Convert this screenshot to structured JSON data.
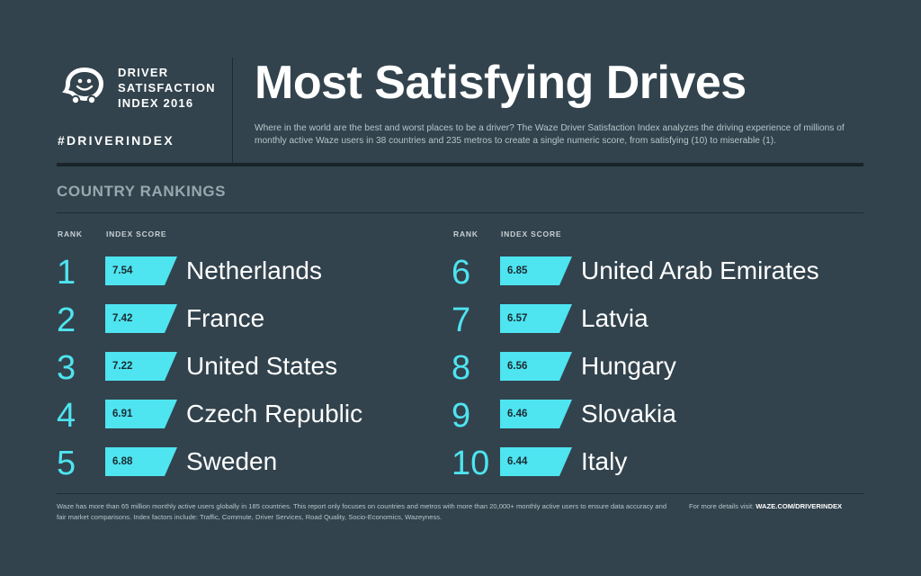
{
  "header": {
    "brand_lines": [
      "DRIVER",
      "SATISFACTION",
      "INDEX 2016"
    ],
    "hashtag": "#DRIVERINDEX",
    "title": "Most Satisfying Drives",
    "intro": "Where in the world are the best and worst places to be a driver? The Waze Driver Satisfaction Index analyzes the driving experience of millions of monthly active Waze users in 38 countries and 235 metros to create a single numeric score, from satisfying (10) to miserable (1)."
  },
  "section": {
    "title": "COUNTRY RANKINGS",
    "rank_header": "RANK",
    "score_header": "INDEX SCORE"
  },
  "rankings_left": [
    {
      "rank": "1",
      "score": "7.54",
      "country": "Netherlands"
    },
    {
      "rank": "2",
      "score": "7.42",
      "country": "France"
    },
    {
      "rank": "3",
      "score": "7.22",
      "country": "United States"
    },
    {
      "rank": "4",
      "score": "6.91",
      "country": "Czech Republic"
    },
    {
      "rank": "5",
      "score": "6.88",
      "country": "Sweden"
    }
  ],
  "rankings_right": [
    {
      "rank": "6",
      "score": "6.85",
      "country": "United Arab Emirates"
    },
    {
      "rank": "7",
      "score": "6.57",
      "country": "Latvia"
    },
    {
      "rank": "8",
      "score": "6.56",
      "country": "Hungary"
    },
    {
      "rank": "9",
      "score": "6.46",
      "country": "Slovakia"
    },
    {
      "rank": "10",
      "score": "6.44",
      "country": "Italy"
    }
  ],
  "footer": {
    "note": "Waze has more than 65 million monthly active users globally in 185 countries. This report only focuses on countries and metros with more than 20,000+ monthly active users to ensure data accuracy and fair market comparisons. Index factors include: Traffic, Commute, Driver Services, Road Quality, Socio-Economics, Wazeyness.",
    "link_prefix": "For more details visit:",
    "link_url": "WAZE.COM/DRIVERINDEX"
  },
  "colors": {
    "background": "#32434d",
    "accent": "#4ee4f0",
    "text": "#ffffff",
    "muted": "#9aa7ae"
  },
  "icons": [
    "waze-logo-icon"
  ]
}
